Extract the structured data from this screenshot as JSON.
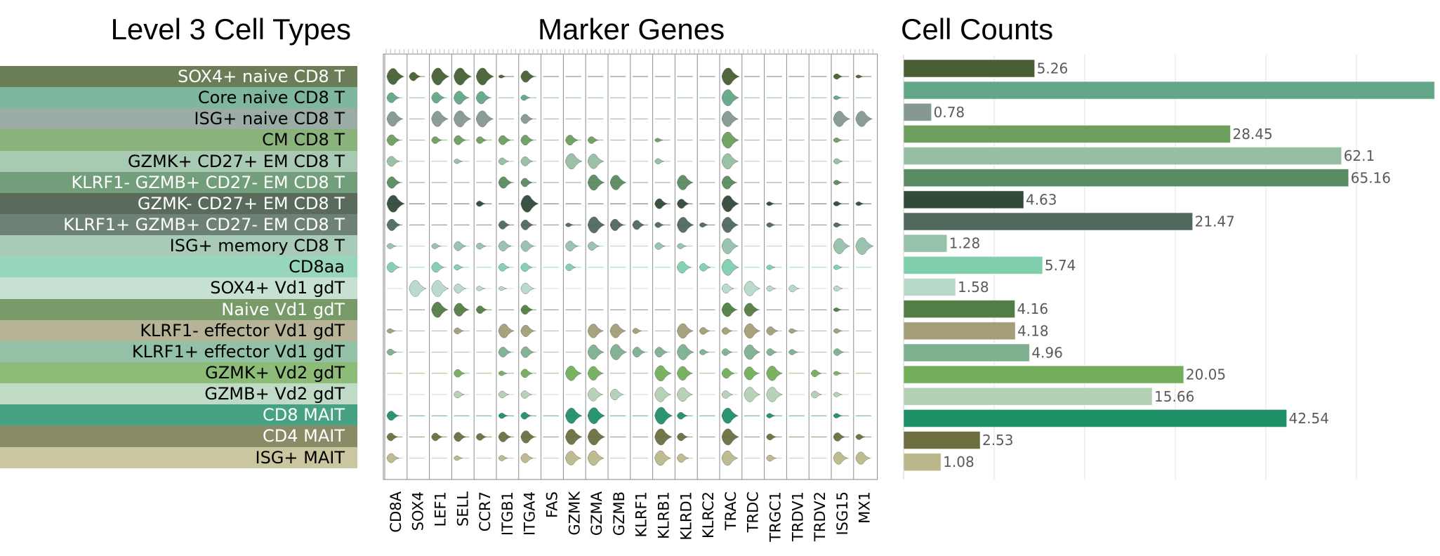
{
  "titles": {
    "cell_types": "Level 3 Cell Types",
    "marker_genes": "Marker Genes",
    "cell_counts": "Cell Counts"
  },
  "chart_data": [
    {
      "type": "table",
      "name": "cell_type_labels",
      "title": "Level 3 Cell Types",
      "rows": [
        {
          "label": "SOX4+ naive CD8 T",
          "color": "#6b7d56",
          "text_color": "#ffffff"
        },
        {
          "label": "Core naive CD8 T",
          "color": "#7fb79e",
          "text_color": "#000000"
        },
        {
          "label": "ISG+ naive CD8 T",
          "color": "#9aaca4",
          "text_color": "#000000"
        },
        {
          "label": "CM CD8 T",
          "color": "#8ab27b",
          "text_color": "#000000"
        },
        {
          "label": "GZMK+ CD27+ EM CD8 T",
          "color": "#a8c9b2",
          "text_color": "#000000"
        },
        {
          "label": "KLRF1- GZMB+ CD27- EM CD8 T",
          "color": "#739e7c",
          "text_color": "#ffffff"
        },
        {
          "label": "GZMK- CD27+ EM CD8 T",
          "color": "#5a6b5b",
          "text_color": "#ffffff"
        },
        {
          "label": "KLRF1+ GZMB+ CD27- EM CD8 T",
          "color": "#6e8175",
          "text_color": "#ffffff"
        },
        {
          "label": "ISG+ memory CD8 T",
          "color": "#a8cbb8",
          "text_color": "#000000"
        },
        {
          "label": "CD8aa",
          "color": "#98d6bb",
          "text_color": "#000000"
        },
        {
          "label": "SOX4+ Vd1 gdT",
          "color": "#c6e0d3",
          "text_color": "#000000"
        },
        {
          "label": "Naive Vd1 gdT",
          "color": "#789a68",
          "text_color": "#ffffff"
        },
        {
          "label": "KLRF1- effector Vd1 gdT",
          "color": "#b6b397",
          "text_color": "#000000"
        },
        {
          "label": "KLRF1+ effector Vd1 gdT",
          "color": "#92c1a5",
          "text_color": "#000000"
        },
        {
          "label": "GZMK+ Vd2 gdT",
          "color": "#8dbc79",
          "text_color": "#000000"
        },
        {
          "label": "GZMB+ Vd2 gdT",
          "color": "#bfdbc6",
          "text_color": "#000000"
        },
        {
          "label": "CD8 MAIT",
          "color": "#47a281",
          "text_color": "#ffffff"
        },
        {
          "label": "CD4 MAIT",
          "color": "#898b66",
          "text_color": "#ffffff"
        },
        {
          "label": "ISG+ MAIT",
          "color": "#cac6a0",
          "text_color": "#000000"
        }
      ]
    },
    {
      "type": "violin",
      "name": "marker_genes",
      "title": "Marker Genes",
      "genes": [
        "CD8A",
        "SOX4",
        "LEF1",
        "SELL",
        "CCR7",
        "ITGB1",
        "ITGA4",
        "FAS",
        "GZMK",
        "GZMA",
        "GZMB",
        "KLRF1",
        "KLRB1",
        "KLRD1",
        "KLRC2",
        "TRAC",
        "TRDC",
        "TRGC1",
        "TRDV1",
        "TRDV2",
        "ISG15",
        "MX1"
      ],
      "value_description": "relative expression density (0-1, estimated from violin width)",
      "rows": [
        {
          "color": "#485f33",
          "values": [
            0.9,
            0.4,
            0.95,
            0.95,
            0.95,
            0.05,
            0.6,
            0,
            0,
            0,
            0,
            0,
            0,
            0,
            0,
            0.95,
            0,
            0,
            0,
            0,
            0.2,
            0.05
          ]
        },
        {
          "color": "#62a787",
          "values": [
            0.5,
            0,
            0.55,
            0.7,
            0.65,
            0,
            0.2,
            0,
            0,
            0,
            0,
            0,
            0,
            0,
            0,
            0.9,
            0,
            0,
            0,
            0,
            0.1,
            0
          ]
        },
        {
          "color": "#849990",
          "values": [
            0.8,
            0.02,
            0.85,
            0.9,
            0.9,
            0.02,
            0.45,
            0,
            0,
            0,
            0,
            0,
            0,
            0,
            0,
            0.85,
            0,
            0,
            0,
            0,
            0.85,
            0.85
          ]
        },
        {
          "color": "#6c9f5e",
          "values": [
            0.55,
            0,
            0.3,
            0.45,
            0.3,
            0.45,
            0.5,
            0,
            0.5,
            0.3,
            0,
            0,
            0.1,
            0,
            0,
            0.9,
            0,
            0,
            0,
            0,
            0.15,
            0
          ]
        },
        {
          "color": "#96bea2",
          "values": [
            0.5,
            0,
            0,
            0.15,
            0,
            0.3,
            0.45,
            0,
            0.85,
            0.8,
            0,
            0,
            0.2,
            0,
            0,
            0.85,
            0,
            0,
            0,
            0,
            0.2,
            0
          ]
        },
        {
          "color": "#5a8a5f",
          "values": [
            0.6,
            0,
            0,
            0,
            0,
            0.6,
            0.4,
            0,
            0,
            0.85,
            0.8,
            0,
            0,
            0.8,
            0,
            0.7,
            0,
            0,
            0,
            0,
            0.15,
            0
          ]
        },
        {
          "color": "#314a39",
          "values": [
            0.95,
            0,
            0,
            0,
            0.2,
            0,
            0.95,
            0,
            0,
            0,
            0,
            0,
            0.5,
            0.45,
            0,
            0.9,
            0,
            0.1,
            0,
            0,
            0.15,
            0.1
          ]
        },
        {
          "color": "#4f695c",
          "values": [
            0.6,
            0,
            0,
            0,
            0,
            0.4,
            0.5,
            0,
            0.1,
            0.9,
            0.6,
            0.45,
            0.2,
            0.85,
            0.15,
            0.85,
            0,
            0.15,
            0,
            0,
            0.15,
            0
          ]
        },
        {
          "color": "#96c1ab",
          "values": [
            0.2,
            0,
            0.2,
            0.45,
            0.25,
            0.5,
            0.55,
            0,
            0.5,
            0.4,
            0,
            0,
            0.3,
            0.2,
            0,
            0.85,
            0,
            0,
            0,
            0,
            0.85,
            0.95
          ]
        },
        {
          "color": "#7fcfad",
          "values": [
            0.5,
            0,
            0.5,
            0.2,
            0,
            0.35,
            0.4,
            0,
            0.3,
            0,
            0,
            0,
            0,
            0.6,
            0.35,
            0.9,
            0,
            0.15,
            0,
            0,
            0.15,
            0
          ]
        },
        {
          "color": "#b6d8c8",
          "values": [
            0,
            0.9,
            0.9,
            0.45,
            0.15,
            0.1,
            0.55,
            0,
            0,
            0,
            0,
            0,
            0,
            0,
            0,
            0.45,
            0.8,
            0.2,
            0.3,
            0,
            0.2,
            0
          ]
        },
        {
          "color": "#527d44",
          "values": [
            0,
            0,
            0.85,
            0.7,
            0.35,
            0,
            0.45,
            0,
            0,
            0,
            0,
            0,
            0,
            0,
            0,
            0.75,
            0.7,
            0,
            0,
            0,
            0.1,
            0
          ]
        },
        {
          "color": "#a39e78",
          "values": [
            0.15,
            0,
            0,
            0.25,
            0,
            0.75,
            0.6,
            0,
            0,
            0.75,
            0.75,
            0.2,
            0,
            0.8,
            0.3,
            0.3,
            0.8,
            0.4,
            0.15,
            0,
            0.15,
            0
          ]
        },
        {
          "color": "#7db08f",
          "values": [
            0.25,
            0,
            0,
            0,
            0,
            0.5,
            0.55,
            0,
            0,
            0.8,
            0.85,
            0.5,
            0.5,
            0.85,
            0.2,
            0.3,
            0.8,
            0.3,
            0.2,
            0,
            0.3,
            0
          ]
        },
        {
          "color": "#72ae5b",
          "values": [
            0,
            0,
            0,
            0.35,
            0,
            0.15,
            0.4,
            0,
            0.8,
            0.75,
            0,
            0,
            0.85,
            0.75,
            0,
            0.5,
            0.7,
            0.8,
            0,
            0.3,
            0.1,
            0
          ]
        },
        {
          "color": "#b2d1b5",
          "values": [
            0,
            0,
            0,
            0.3,
            0,
            0.3,
            0.35,
            0,
            0,
            0.7,
            0.55,
            0,
            0.8,
            0.75,
            0,
            0.35,
            0.8,
            0.8,
            0,
            0.3,
            0.15,
            0
          ]
        },
        {
          "color": "#1f8f66",
          "values": [
            0.45,
            0,
            0,
            0,
            0,
            0.2,
            0.3,
            0,
            0.85,
            0.9,
            0,
            0,
            0.95,
            0.3,
            0,
            0.85,
            0,
            0.15,
            0,
            0,
            0.15,
            0
          ]
        },
        {
          "color": "#6d6e3f",
          "values": [
            0.35,
            0,
            0.35,
            0.45,
            0.3,
            0.5,
            0.65,
            0,
            0.85,
            0.9,
            0,
            0,
            0.9,
            0.35,
            0,
            0.9,
            0,
            0.25,
            0,
            0,
            0.4,
            0.2
          ]
        },
        {
          "color": "#bab88a",
          "values": [
            0.45,
            0,
            0,
            0.15,
            0,
            0.2,
            0.45,
            0,
            0.75,
            0.8,
            0,
            0,
            0.8,
            0.4,
            0,
            0.8,
            0,
            0.25,
            0,
            0,
            0.65,
            0.65
          ]
        }
      ]
    },
    {
      "type": "bar",
      "orientation": "horizontal",
      "name": "cell_counts",
      "title": "Cell Counts",
      "scale": "log1p-like (nonlinear)",
      "grid": true,
      "categories": [
        "SOX4+ naive CD8 T",
        "Core naive CD8 T",
        "ISG+ naive CD8 T",
        "CM CD8 T",
        "GZMK+ CD27+ EM CD8 T",
        "KLRF1- GZMB+ CD27- EM CD8 T",
        "GZMK- CD27+ EM CD8 T",
        "KLRF1+ GZMB+ CD27- EM CD8 T",
        "ISG+ memory CD8 T",
        "CD8aa",
        "SOX4+ Vd1 gdT",
        "Naive Vd1 gdT",
        "KLRF1- effector Vd1 gdT",
        "KLRF1+ effector Vd1 gdT",
        "GZMK+ Vd2 gdT",
        "GZMB+ Vd2 gdT",
        "CD8 MAIT",
        "CD4 MAIT",
        "ISG+ MAIT"
      ],
      "values": [
        5.26,
        116,
        0.78,
        28.45,
        62.1,
        65.16,
        4.63,
        21.47,
        1.28,
        5.74,
        1.58,
        4.16,
        4.18,
        4.96,
        20.05,
        15.66,
        42.54,
        2.53,
        1.08
      ],
      "value_labels": [
        "5.26",
        "",
        "0.78",
        "28.45",
        "62.1",
        "65.16",
        "4.63",
        "21.47",
        "1.28",
        "5.74",
        "1.58",
        "4.16",
        "4.18",
        "4.96",
        "20.05",
        "15.66",
        "42.54",
        "2.53",
        "1.08"
      ],
      "colors": [
        "#485f33",
        "#62a787",
        "#849990",
        "#6c9f5e",
        "#96bea2",
        "#5a8a5f",
        "#314a39",
        "#4f695c",
        "#96c1ab",
        "#7fcfad",
        "#b6d8c8",
        "#527d44",
        "#a39e78",
        "#7db08f",
        "#72ae5b",
        "#b2d1b5",
        "#1f8f66",
        "#6d6e3f",
        "#bab88a"
      ]
    }
  ]
}
